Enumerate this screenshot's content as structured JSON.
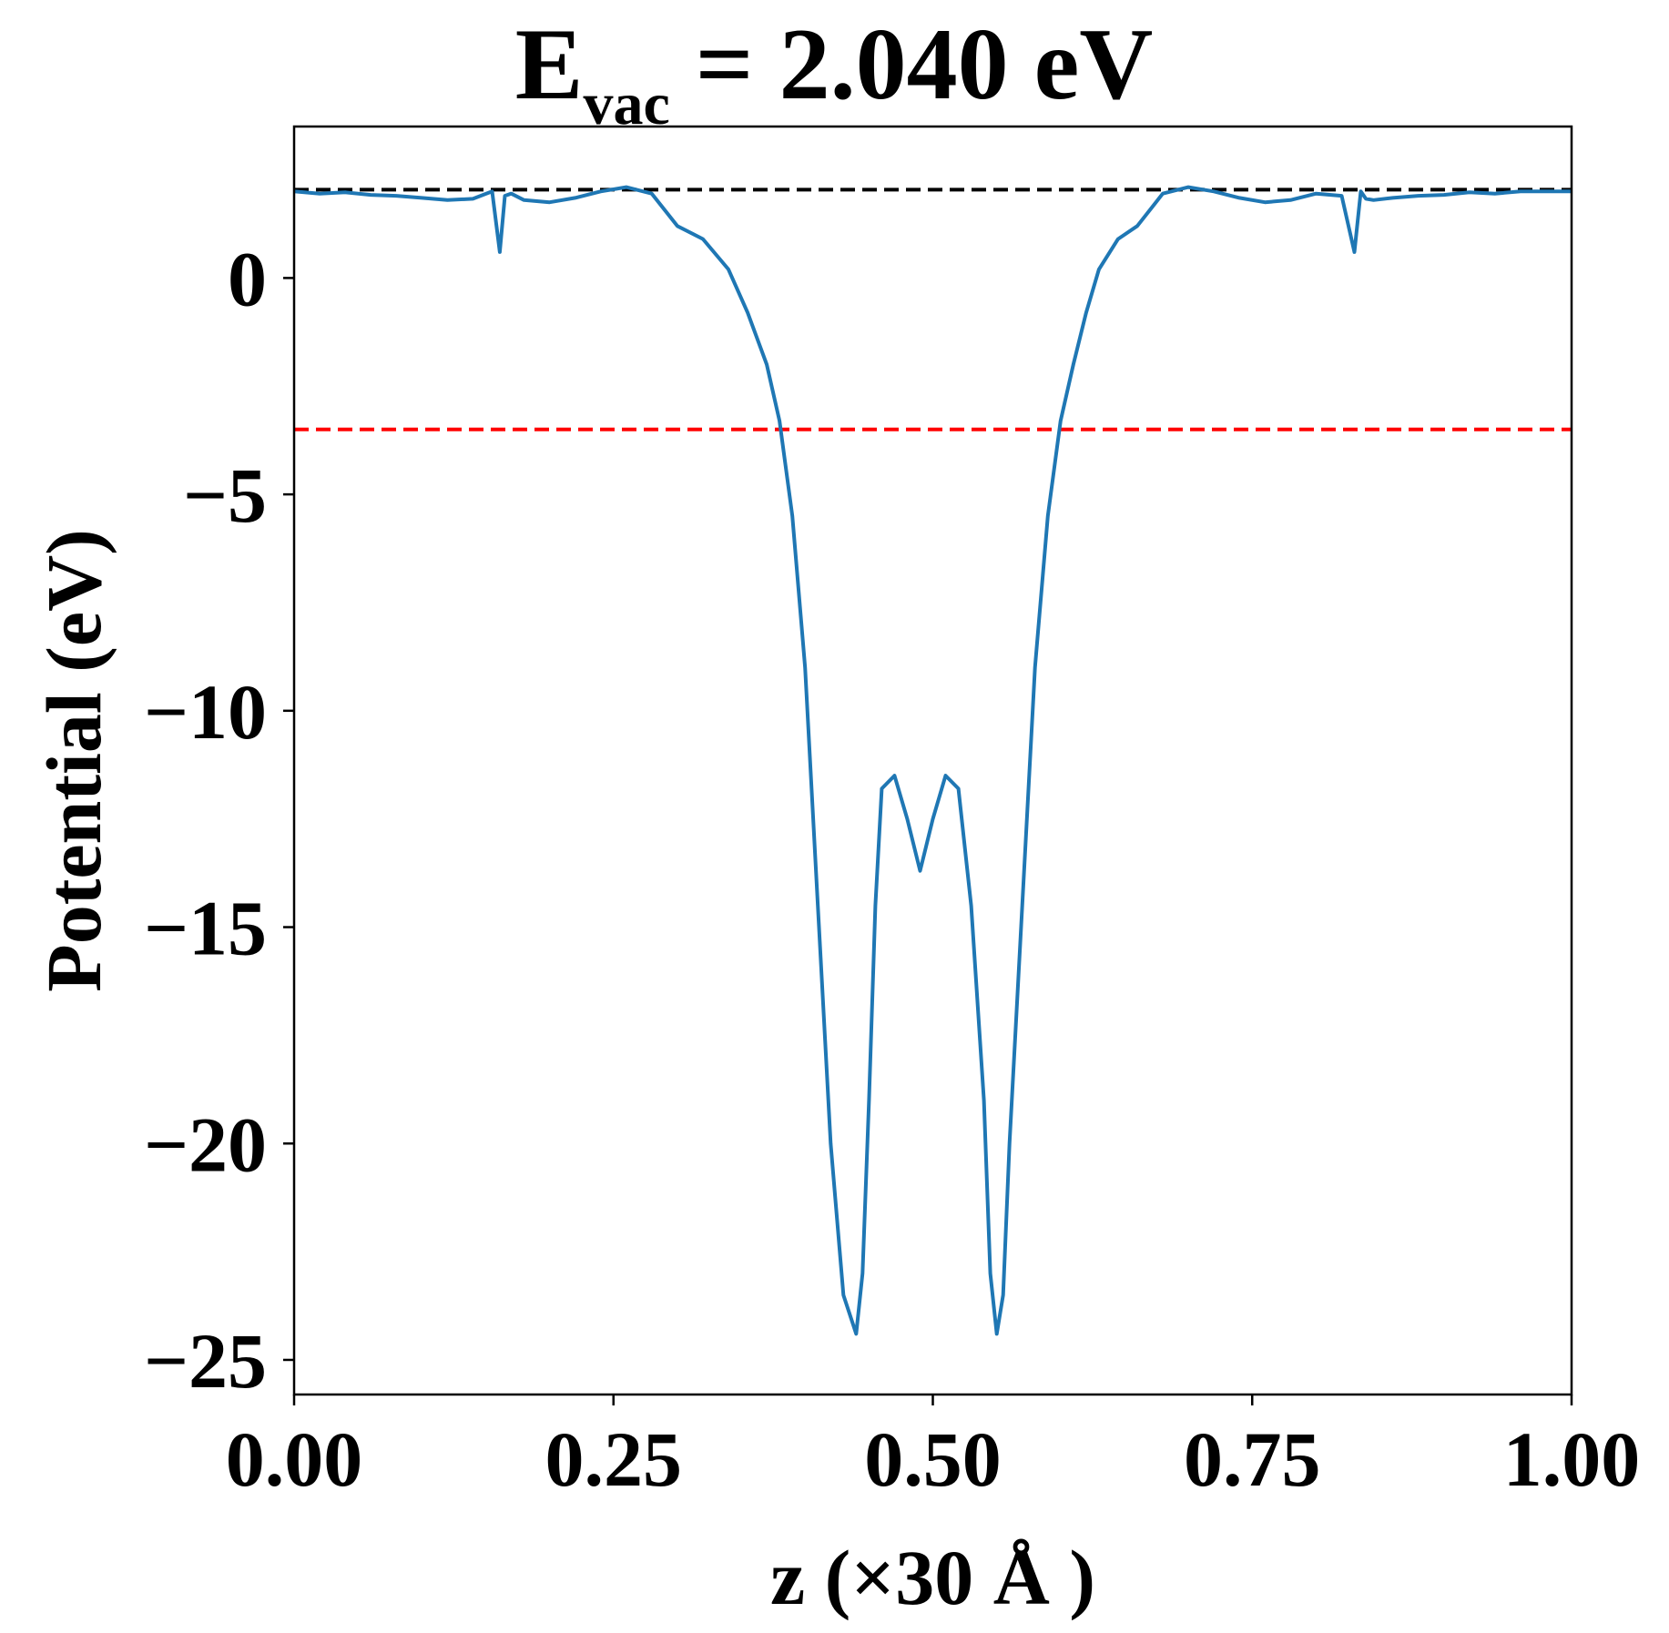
{
  "chart_data": {
    "type": "line",
    "title": {
      "main": "E",
      "subscript": "vac",
      "rest": " = 2.040 eV"
    },
    "xlabel": "z (×30 Å )",
    "ylabel": "Potential (eV)",
    "xlim": [
      0.0,
      1.0
    ],
    "ylim": [
      -25.8,
      3.5
    ],
    "xticks": [
      0.0,
      0.25,
      0.5,
      0.75,
      1.0
    ],
    "xtick_labels": [
      "0.00",
      "0.25",
      "0.50",
      "0.75",
      "1.00"
    ],
    "yticks": [
      0,
      -5,
      -10,
      -15,
      -20,
      -25
    ],
    "ytick_labels": [
      "0",
      "−5",
      "−10",
      "−15",
      "−20",
      "−25"
    ],
    "grid": false,
    "reference_lines": [
      {
        "y": 2.04,
        "color": "#000000",
        "style": "dashed"
      },
      {
        "y": -3.5,
        "color": "#ff0000",
        "style": "dashed"
      }
    ],
    "series": [
      {
        "color": "#1f77b4",
        "x": [
          0.0,
          0.02,
          0.04,
          0.06,
          0.08,
          0.1,
          0.12,
          0.14,
          0.155,
          0.161,
          0.165,
          0.17,
          0.18,
          0.2,
          0.22,
          0.24,
          0.26,
          0.28,
          0.3,
          0.32,
          0.34,
          0.355,
          0.37,
          0.38,
          0.39,
          0.4,
          0.41,
          0.42,
          0.43,
          0.44,
          0.445,
          0.45,
          0.455,
          0.46,
          0.47,
          0.48,
          0.49,
          0.5,
          0.51,
          0.52,
          0.53,
          0.54,
          0.545,
          0.55,
          0.555,
          0.56,
          0.57,
          0.58,
          0.59,
          0.6,
          0.61,
          0.62,
          0.63,
          0.645,
          0.66,
          0.68,
          0.7,
          0.72,
          0.74,
          0.76,
          0.78,
          0.8,
          0.82,
          0.83,
          0.835,
          0.839,
          0.845,
          0.86,
          0.88,
          0.9,
          0.92,
          0.94,
          0.96,
          0.98,
          1.0
        ],
        "y": [
          2.0,
          1.95,
          1.98,
          1.92,
          1.9,
          1.85,
          1.8,
          1.83,
          2.0,
          0.6,
          1.9,
          1.95,
          1.8,
          1.75,
          1.85,
          2.0,
          2.1,
          1.95,
          1.2,
          0.9,
          0.2,
          -0.8,
          -2.0,
          -3.3,
          -5.5,
          -9.0,
          -14.5,
          -20.0,
          -23.5,
          -24.4,
          -23.0,
          -19.0,
          -14.5,
          -11.8,
          -11.5,
          -12.5,
          -13.7,
          -12.5,
          -11.5,
          -11.8,
          -14.5,
          -19.0,
          -23.0,
          -24.4,
          -23.5,
          -20.0,
          -14.5,
          -9.0,
          -5.5,
          -3.3,
          -2.0,
          -0.8,
          0.2,
          0.9,
          1.2,
          1.95,
          2.1,
          2.0,
          1.85,
          1.75,
          1.8,
          1.95,
          1.9,
          0.6,
          2.0,
          1.83,
          1.8,
          1.85,
          1.9,
          1.92,
          1.98,
          1.95,
          2.0,
          2.0,
          2.0
        ]
      }
    ]
  }
}
